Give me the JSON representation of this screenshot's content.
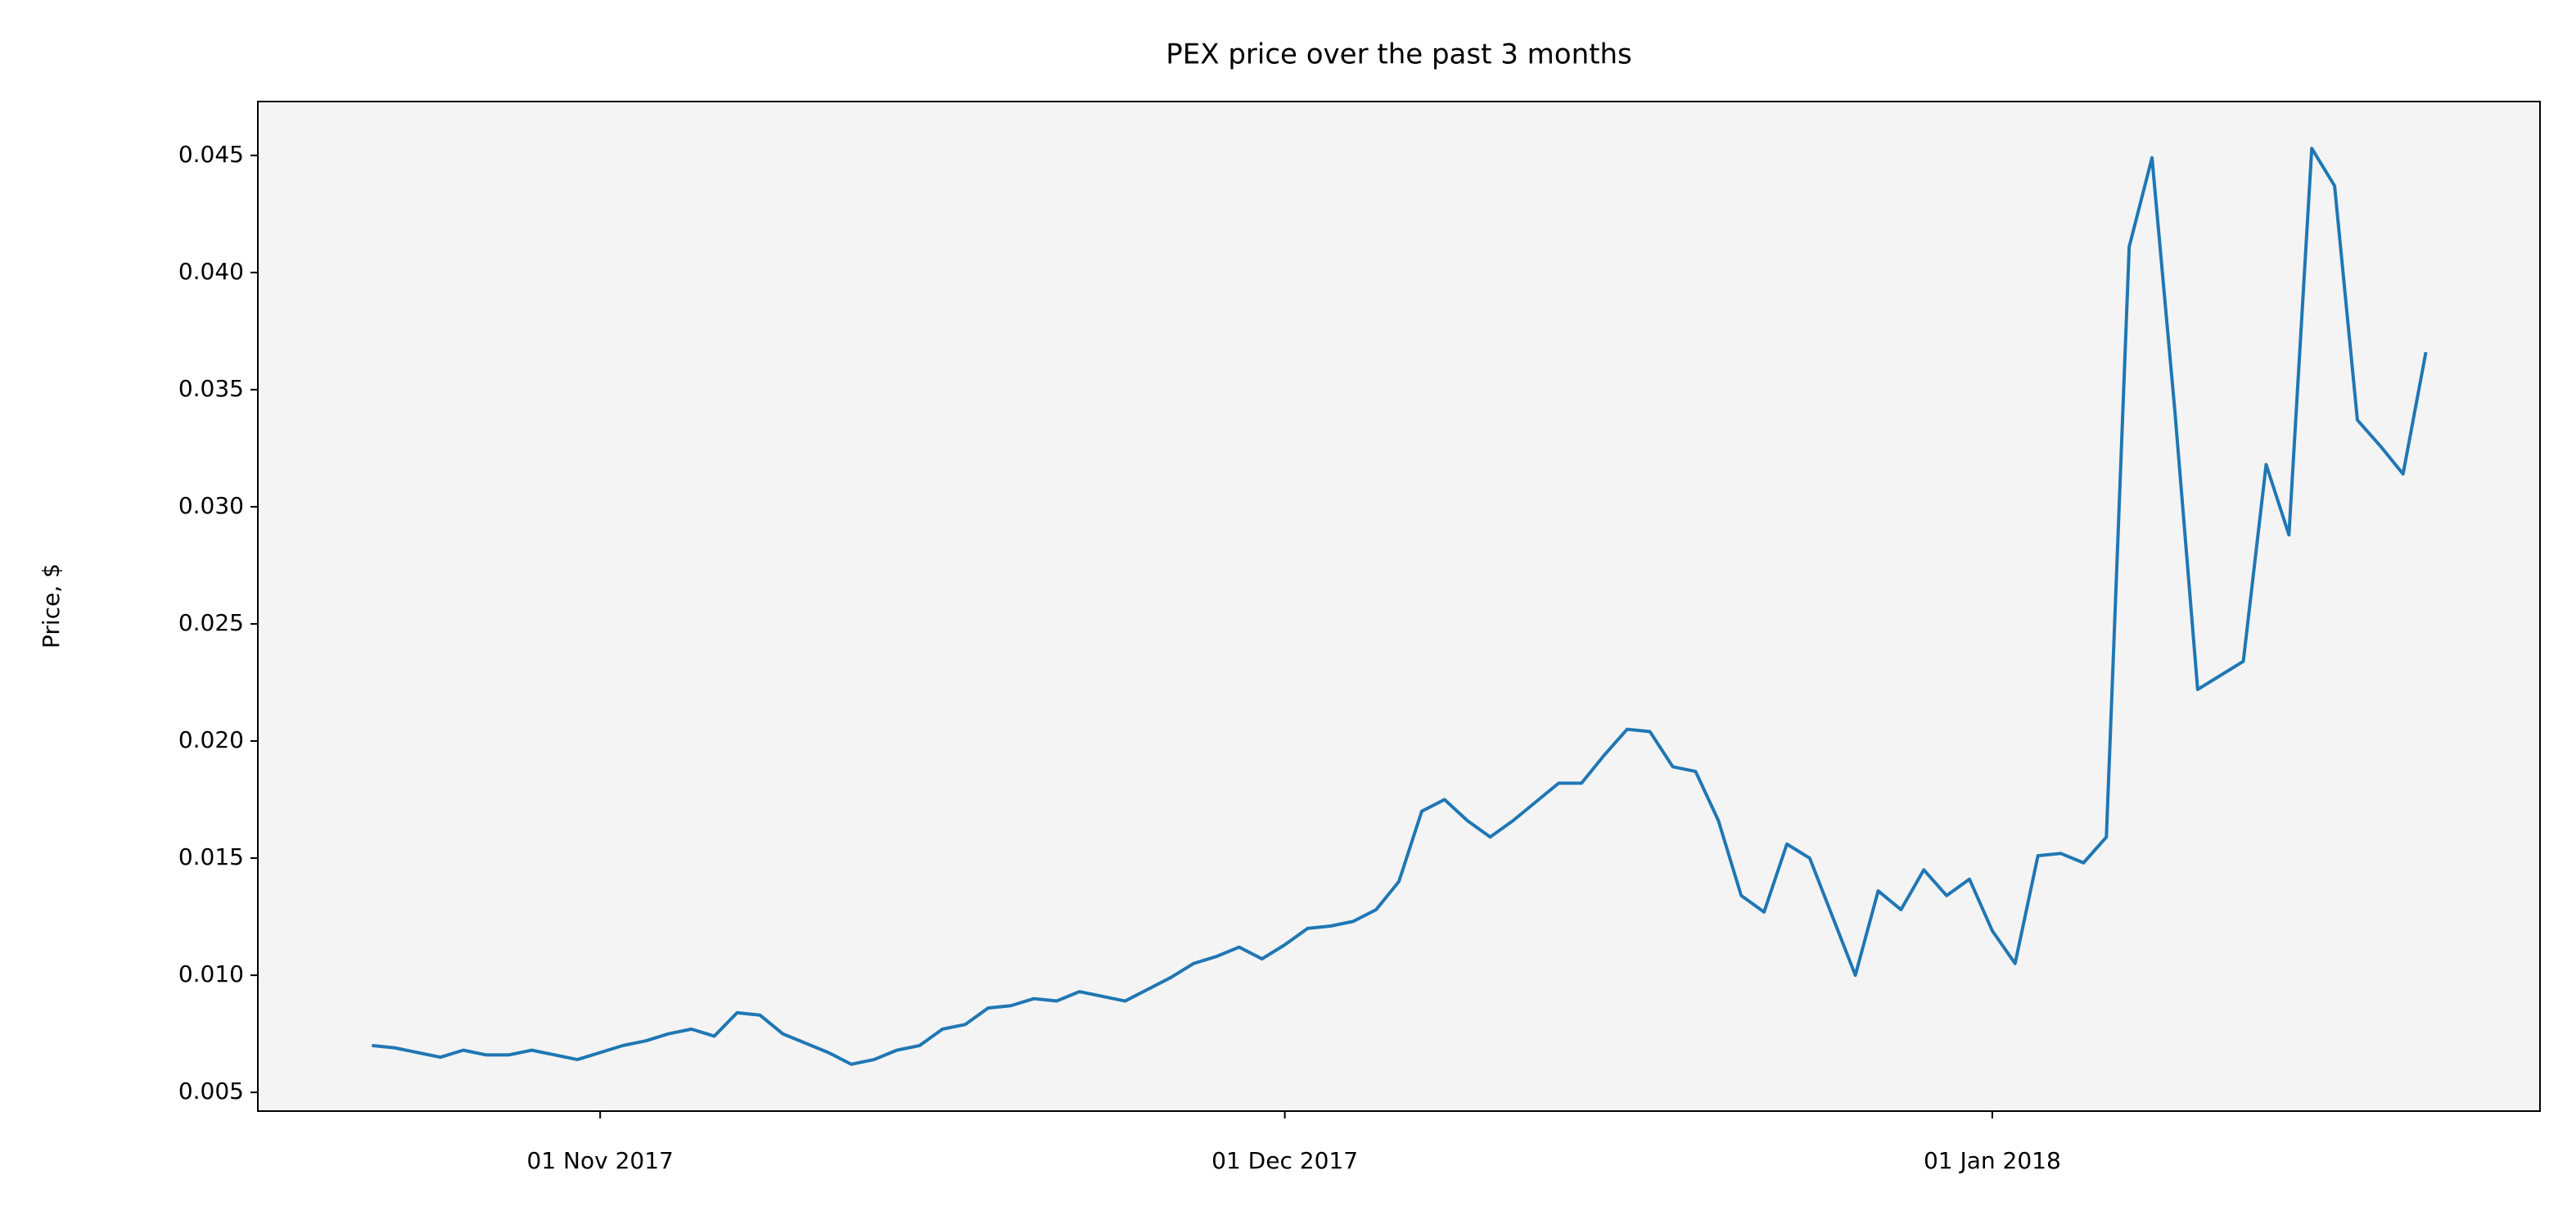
{
  "chart_data": {
    "type": "line",
    "title": "PEX price over the past 3 months",
    "ylabel": "Price, $",
    "x": [
      "2017-10-22",
      "2017-10-23",
      "2017-10-24",
      "2017-10-25",
      "2017-10-26",
      "2017-10-27",
      "2017-10-28",
      "2017-10-29",
      "2017-10-30",
      "2017-10-31",
      "2017-11-01",
      "2017-11-02",
      "2017-11-03",
      "2017-11-04",
      "2017-11-05",
      "2017-11-06",
      "2017-11-07",
      "2017-11-08",
      "2017-11-09",
      "2017-11-10",
      "2017-11-11",
      "2017-11-12",
      "2017-11-13",
      "2017-11-14",
      "2017-11-15",
      "2017-11-16",
      "2017-11-17",
      "2017-11-18",
      "2017-11-19",
      "2017-11-20",
      "2017-11-21",
      "2017-11-22",
      "2017-11-23",
      "2017-11-24",
      "2017-11-25",
      "2017-11-26",
      "2017-11-27",
      "2017-11-28",
      "2017-11-29",
      "2017-11-30",
      "2017-12-01",
      "2017-12-02",
      "2017-12-03",
      "2017-12-04",
      "2017-12-05",
      "2017-12-06",
      "2017-12-07",
      "2017-12-08",
      "2017-12-09",
      "2017-12-10",
      "2017-12-11",
      "2017-12-12",
      "2017-12-13",
      "2017-12-14",
      "2017-12-15",
      "2017-12-16",
      "2017-12-17",
      "2017-12-18",
      "2017-12-19",
      "2017-12-20",
      "2017-12-21",
      "2017-12-22",
      "2017-12-23",
      "2017-12-24",
      "2017-12-25",
      "2017-12-26",
      "2017-12-27",
      "2017-12-28",
      "2017-12-29",
      "2017-12-30",
      "2017-12-31",
      "2018-01-01",
      "2018-01-02",
      "2018-01-03",
      "2018-01-04",
      "2018-01-05",
      "2018-01-06",
      "2018-01-07",
      "2018-01-08",
      "2018-01-09",
      "2018-01-10",
      "2018-01-11",
      "2018-01-12",
      "2018-01-13",
      "2018-01-14",
      "2018-01-15",
      "2018-01-16",
      "2018-01-17",
      "2018-01-18",
      "2018-01-19",
      "2018-01-20"
    ],
    "values": [
      0.007,
      0.0069,
      0.0067,
      0.0065,
      0.0068,
      0.0066,
      0.0066,
      0.0068,
      0.0066,
      0.0064,
      0.0067,
      0.007,
      0.0072,
      0.0075,
      0.0077,
      0.0074,
      0.0084,
      0.0083,
      0.0075,
      0.0071,
      0.0067,
      0.0062,
      0.0064,
      0.0068,
      0.007,
      0.0077,
      0.0079,
      0.0086,
      0.0087,
      0.009,
      0.0089,
      0.0093,
      0.0091,
      0.0089,
      0.0094,
      0.0099,
      0.0105,
      0.0108,
      0.0112,
      0.0107,
      0.0113,
      0.012,
      0.0121,
      0.0123,
      0.0128,
      0.014,
      0.017,
      0.0175,
      0.0166,
      0.0159,
      0.0166,
      0.0174,
      0.0182,
      0.0182,
      0.0194,
      0.0205,
      0.0204,
      0.0189,
      0.0187,
      0.0166,
      0.0134,
      0.0127,
      0.0156,
      0.015,
      0.0125,
      0.01,
      0.0136,
      0.0128,
      0.0145,
      0.0134,
      0.0141,
      0.0119,
      0.0105,
      0.0151,
      0.0152,
      0.0148,
      0.0159,
      0.0411,
      0.0449,
      0.0341,
      0.0222,
      0.0228,
      0.0234,
      0.0318,
      0.0288,
      0.0453,
      0.0437,
      0.0337,
      0.0326,
      0.0314,
      0.0366
    ],
    "color": "#1f77b4",
    "xlim": [
      "2017-10-17",
      "2018-01-25"
    ],
    "xticks": [
      {
        "value": "2017-11-01",
        "label": "01 Nov 2017"
      },
      {
        "value": "2017-12-01",
        "label": "01 Dec 2017"
      },
      {
        "value": "2018-01-01",
        "label": "01 Jan 2018"
      }
    ],
    "ylim": [
      0.0042,
      0.0473
    ],
    "yticks": [
      0.005,
      {
        "value": 0.01,
        "label": "0.010"
      },
      0.015,
      {
        "value": 0.02,
        "label": "0.020"
      },
      0.025,
      {
        "value": 0.03,
        "label": "0.030"
      },
      0.035,
      {
        "value": 0.04,
        "label": "0.040"
      },
      0.045
    ],
    "background": "#f4f4f4"
  }
}
